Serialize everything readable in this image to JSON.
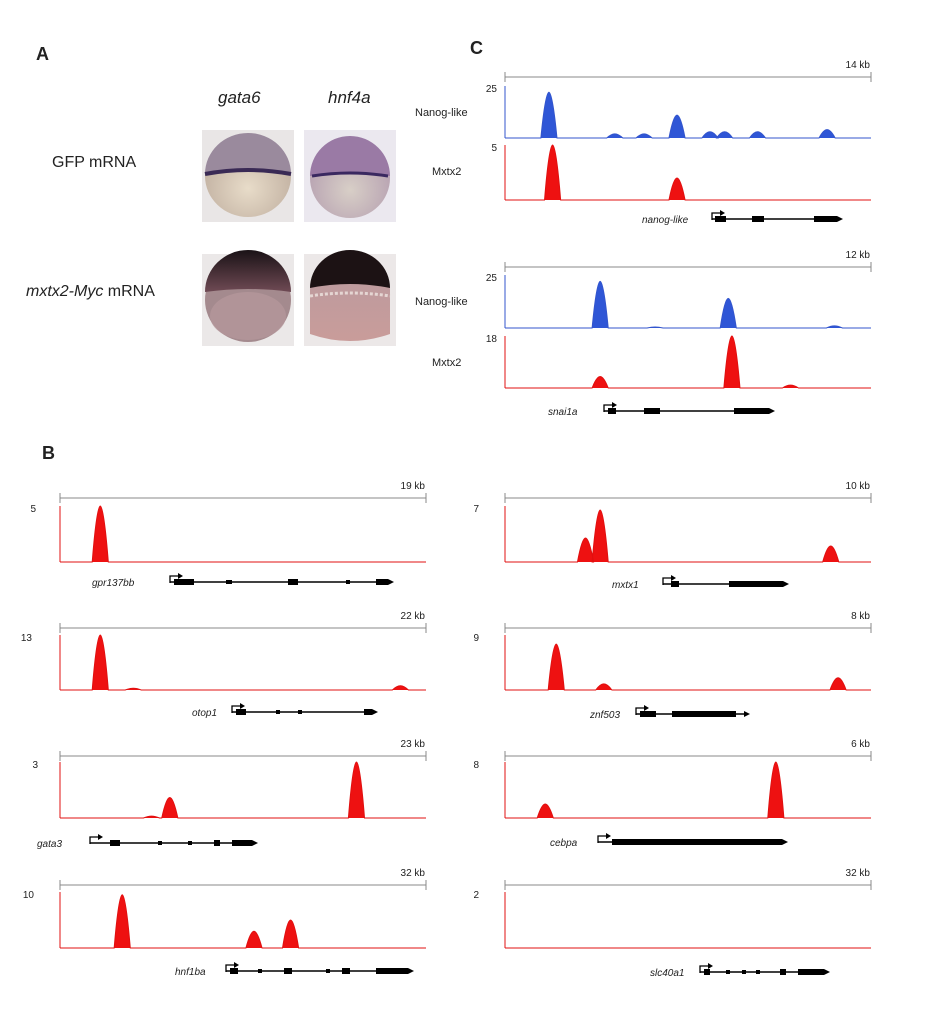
{
  "panel_a": {
    "label": "A",
    "columns": [
      "gata6",
      "hnf4a"
    ],
    "rows": [
      {
        "label_italic": "",
        "label_plain": "GFP mRNA"
      },
      {
        "label_italic": "mxtx2-Myc",
        "label_plain": " mRNA"
      }
    ]
  },
  "panel_b": {
    "label": "B"
  },
  "panel_c": {
    "label": "C"
  },
  "chart_data": [
    {
      "panel": "C",
      "type": "area",
      "region": "14 kb",
      "gene": "nanog-like",
      "tracks": [
        {
          "name": "Nanog-like",
          "ymax": 25,
          "color": "#3355cc",
          "peaks": [
            [
              0.12,
              22
            ],
            [
              0.3,
              2
            ],
            [
              0.38,
              2
            ],
            [
              0.47,
              11
            ],
            [
              0.56,
              3
            ],
            [
              0.6,
              3
            ],
            [
              0.69,
              3
            ],
            [
              0.88,
              4
            ]
          ]
        },
        {
          "name": "Mxtx2",
          "ymax": 5,
          "color": "#e01010",
          "peaks": [
            [
              0.13,
              5
            ],
            [
              0.47,
              2
            ]
          ]
        }
      ]
    },
    {
      "panel": "C",
      "type": "area",
      "region": "12 kb",
      "gene": "snai1a",
      "tracks": [
        {
          "name": "Nanog-like",
          "ymax": 25,
          "color": "#3355cc",
          "peaks": [
            [
              0.26,
              22
            ],
            [
              0.41,
              0.5
            ],
            [
              0.61,
              14
            ],
            [
              0.9,
              1
            ]
          ]
        },
        {
          "name": "Mxtx2",
          "ymax": 18,
          "color": "#e01010",
          "peaks": [
            [
              0.26,
              4
            ],
            [
              0.62,
              18
            ],
            [
              0.78,
              1
            ]
          ]
        }
      ]
    },
    {
      "panel": "B",
      "type": "area",
      "region": "19 kb",
      "gene": "gpr137bb",
      "ymax": 5,
      "peaks": [
        [
          0.11,
          5
        ]
      ]
    },
    {
      "panel": "B",
      "type": "area",
      "region": "22 kb",
      "gene": "otop1",
      "ymax": 13,
      "peaks": [
        [
          0.11,
          13
        ],
        [
          0.2,
          0.4
        ],
        [
          0.93,
          1
        ]
      ]
    },
    {
      "panel": "B",
      "type": "area",
      "region": "23 kb",
      "gene": "gata3",
      "ymax": 3,
      "peaks": [
        [
          0.25,
          0.1
        ],
        [
          0.3,
          1.1
        ],
        [
          0.81,
          3
        ]
      ]
    },
    {
      "panel": "B",
      "type": "area",
      "region": "32 kb",
      "gene": "hnf1ba",
      "ymax": 10,
      "peaks": [
        [
          0.17,
          9.5
        ],
        [
          0.53,
          3
        ],
        [
          0.63,
          5
        ]
      ]
    },
    {
      "panel": "B",
      "type": "area",
      "region": "10 kb",
      "gene": "mxtx1",
      "ymax": 7,
      "peaks": [
        [
          0.22,
          3
        ],
        [
          0.26,
          6.5
        ],
        [
          0.89,
          2
        ]
      ]
    },
    {
      "panel": "B",
      "type": "area",
      "region": "8 kb",
      "gene": "znf503",
      "ymax": 9,
      "peaks": [
        [
          0.14,
          7.5
        ],
        [
          0.27,
          1
        ],
        [
          0.91,
          2
        ]
      ]
    },
    {
      "panel": "B",
      "type": "area",
      "region": "6 kb",
      "gene": "cebpa",
      "ymax": 8,
      "peaks": [
        [
          0.11,
          2
        ],
        [
          0.74,
          8
        ]
      ]
    },
    {
      "panel": "B",
      "type": "area",
      "region": "32 kb",
      "gene": "slc40a1",
      "ymax": 2,
      "peaks": []
    }
  ]
}
